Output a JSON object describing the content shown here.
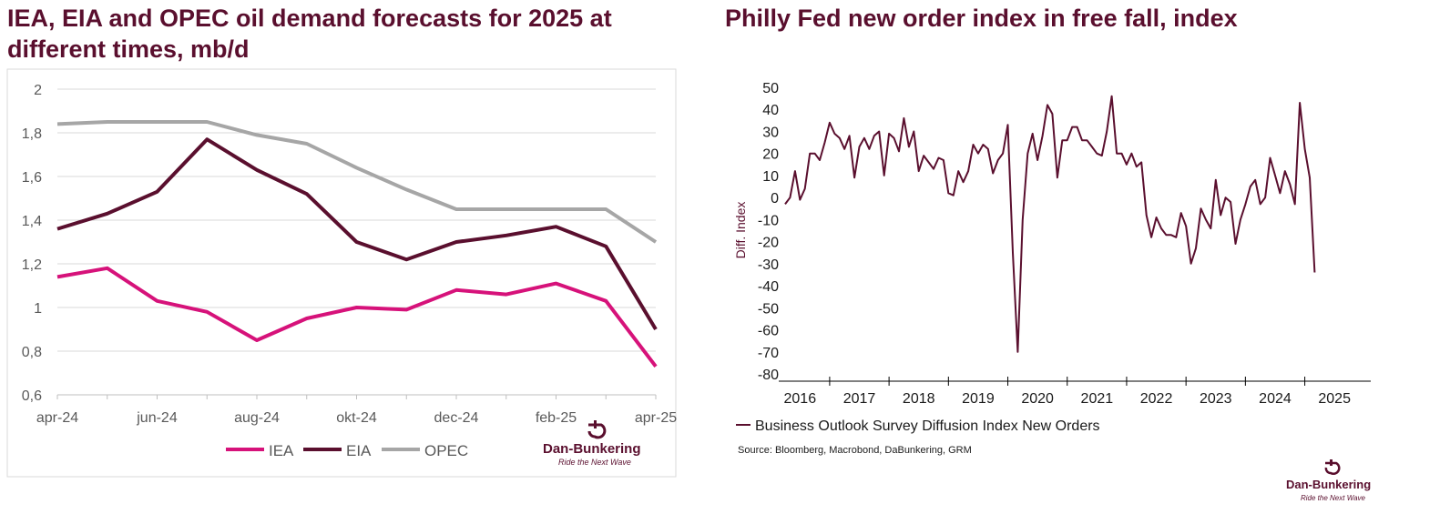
{
  "brand": {
    "name": "Dan-Bunkering",
    "tagline": "Ride the Next Wave",
    "color": "#5a0f2e"
  },
  "colors": {
    "iea": "#d6127a",
    "eia": "#5a0f2e",
    "opec": "#a6a6a6",
    "grid": "#d9d9d9",
    "axis": "#bfbfbf",
    "text": "#595959",
    "philly": "#5a0f2e"
  },
  "chart_data": [
    {
      "type": "line",
      "title": "IEA, EIA and OPEC oil demand forecasts for 2025 at different times, mb/d",
      "ylim": [
        0.6,
        2.0
      ],
      "yticks": [
        0.6,
        0.8,
        1.0,
        1.2,
        1.4,
        1.6,
        1.8,
        2.0
      ],
      "ytick_labels": [
        "0,6",
        "0,8",
        "1",
        "1,2",
        "1,4",
        "1,6",
        "1,8",
        "2"
      ],
      "categories": [
        "apr-24",
        "maj-24",
        "jun-24",
        "jul-24",
        "aug-24",
        "sep-24",
        "okt-24",
        "nov-24",
        "dec-24",
        "jan-25",
        "feb-25",
        "mar-25",
        "apr-25"
      ],
      "xtick_labels": [
        "apr-24",
        "",
        "jun-24",
        "",
        "aug-24",
        "",
        "okt-24",
        "",
        "dec-24",
        "",
        "feb-25",
        "",
        "apr-25"
      ],
      "series": [
        {
          "name": "IEA",
          "values": [
            1.14,
            1.18,
            1.03,
            0.98,
            0.85,
            0.95,
            1.0,
            0.99,
            1.08,
            1.06,
            1.11,
            1.03,
            0.73
          ]
        },
        {
          "name": "EIA",
          "values": [
            1.36,
            1.43,
            1.53,
            1.77,
            1.63,
            1.52,
            1.3,
            1.22,
            1.3,
            1.33,
            1.37,
            1.28,
            0.9
          ]
        },
        {
          "name": "OPEC",
          "values": [
            1.84,
            1.85,
            1.85,
            1.85,
            1.79,
            1.75,
            1.64,
            1.54,
            1.45,
            1.45,
            1.45,
            1.45,
            1.3
          ]
        }
      ],
      "legend": "bottom"
    },
    {
      "type": "line",
      "title": "Philly Fed new order index in free fall, index",
      "ylabel": "Diff. Index",
      "ylim": [
        -80,
        50
      ],
      "yticks": [
        -80,
        -70,
        -60,
        -50,
        -40,
        -30,
        -20,
        -10,
        0,
        10,
        20,
        30,
        40,
        50
      ],
      "ytick_labels": [
        "-80",
        "-70",
        "-60",
        "-50",
        "-40",
        "-30",
        "-20",
        "-10",
        "0",
        "10",
        "20",
        "30",
        "40",
        "50"
      ],
      "x_start": 2015.75,
      "x_step": 0.0833333,
      "x_range": [
        2015.75,
        2025.35
      ],
      "year_labels": [
        "2016",
        "2017",
        "2018",
        "2019",
        "2020",
        "2021",
        "2022",
        "2023",
        "2024",
        "2025"
      ],
      "year_positions": [
        2016.0,
        2017.0,
        2018.0,
        2019.0,
        2020.0,
        2021.0,
        2022.0,
        2023.0,
        2024.0,
        2025.0
      ],
      "year_ticks": [
        2016.5,
        2017.5,
        2018.5,
        2019.5,
        2020.5,
        2021.5,
        2022.5,
        2023.5,
        2024.5
      ],
      "series": [
        {
          "name": "Business Outlook Survey Diffusion Index New Orders",
          "values": [
            -3,
            0,
            12,
            -1,
            4,
            20,
            20,
            17,
            25,
            34,
            29,
            27,
            22,
            28,
            9,
            23,
            27,
            22,
            28,
            30,
            10,
            29,
            27,
            21,
            36,
            23,
            30,
            12,
            19,
            16,
            13,
            18,
            17,
            2,
            1,
            12,
            7,
            12,
            24,
            20,
            24,
            22,
            11,
            17,
            20,
            33,
            -25,
            -70,
            -10,
            20,
            29,
            17,
            28,
            42,
            38,
            9,
            26,
            26,
            32,
            32,
            26,
            26,
            23,
            20,
            19,
            30,
            46,
            20,
            20,
            15,
            20,
            14,
            16,
            -8,
            -18,
            -9,
            -14,
            -17,
            -17,
            -18,
            -7,
            -13,
            -30,
            -23,
            -5,
            -10,
            -14,
            8,
            -8,
            0,
            -2,
            -21,
            -10,
            -3,
            5,
            8,
            -3,
            0,
            18,
            10,
            2,
            12,
            6,
            -3,
            43,
            22,
            9,
            -34
          ]
        }
      ],
      "legend": "bottom-left",
      "source": "Source: Bloomberg, Macrobond, DaBunkering, GRM"
    }
  ]
}
